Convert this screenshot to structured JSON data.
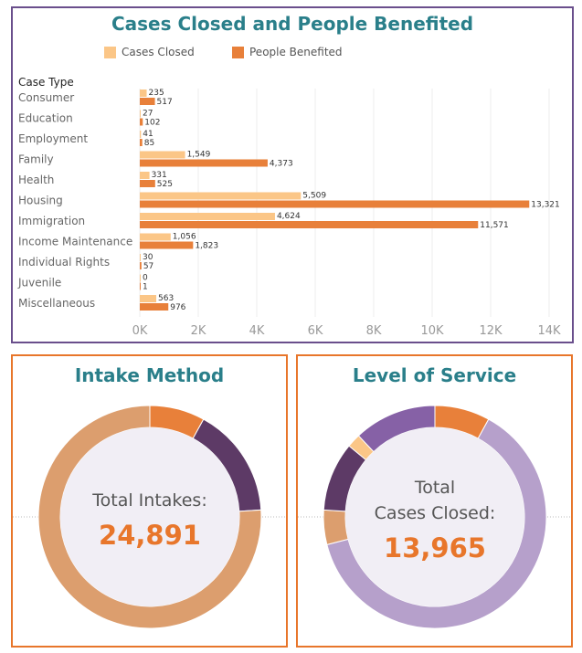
{
  "chart_data": [
    {
      "type": "bar",
      "title": "Cases Closed and People Benefited",
      "ylabel": "Case Type",
      "categories": [
        "Consumer",
        "Education",
        "Employment",
        "Family",
        "Health",
        "Housing",
        "Immigration",
        "Income Maintenance",
        "Individual Rights",
        "Juvenile",
        "Miscellaneous"
      ],
      "series": [
        {
          "name": "Cases Closed",
          "color": "#fbc687",
          "values": [
            235,
            27,
            41,
            1549,
            331,
            5509,
            4624,
            1056,
            30,
            0,
            563
          ],
          "labels": [
            "235",
            "27",
            "41",
            "1,549",
            "331",
            "5,509",
            "4,624",
            "1,056",
            "30",
            "0",
            "563"
          ]
        },
        {
          "name": "People Benefited",
          "color": "#e8803a",
          "values": [
            517,
            102,
            85,
            4373,
            525,
            13321,
            11571,
            1823,
            57,
            1,
            976
          ],
          "labels": [
            "517",
            "102",
            "85",
            "4,373",
            "525",
            "13,321",
            "11,571",
            "1,823",
            "57",
            "1",
            "976"
          ]
        }
      ],
      "xlim": [
        0,
        14500
      ],
      "xticks": [
        0,
        2000,
        4000,
        6000,
        8000,
        10000,
        12000,
        14000
      ],
      "xtick_labels": [
        "0K",
        "2K",
        "4K",
        "6K",
        "8K",
        "10K",
        "12K",
        "14K"
      ],
      "grid": "vertical",
      "legend": "top"
    },
    {
      "type": "pie",
      "title": "Intake Method",
      "center_label": "Total Intakes:",
      "center_value": "24,891",
      "slices": [
        {
          "fraction": 0.08,
          "color": "#e8803a"
        },
        {
          "fraction": 0.16,
          "color": "#5d3a66"
        },
        {
          "fraction": 0.76,
          "color": "#dc9e6e"
        }
      ]
    },
    {
      "type": "pie",
      "title": "Level of Service",
      "center_label": "Total\nCases Closed:",
      "center_label_lines": [
        "Total",
        "Cases Closed:"
      ],
      "center_value": "13,965",
      "slices": [
        {
          "fraction": 0.08,
          "color": "#e8803a"
        },
        {
          "fraction": 0.63,
          "color": "#b6a0cb"
        },
        {
          "fraction": 0.05,
          "color": "#dc9e6e"
        },
        {
          "fraction": 0.1,
          "color": "#5d3a66"
        },
        {
          "fraction": 0.02,
          "color": "#fbc687"
        },
        {
          "fraction": 0.12,
          "color": "#8661a6"
        }
      ]
    }
  ],
  "colors": {
    "title": "#2a7f8a",
    "center_value": "#e8762b",
    "donut_hole": "#f1eef5"
  }
}
